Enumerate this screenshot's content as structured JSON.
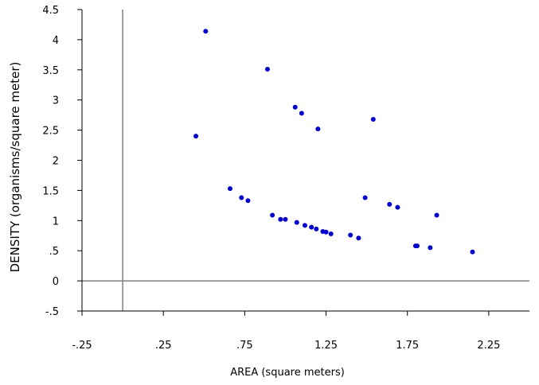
{
  "chart_data": {
    "type": "scatter",
    "title": "",
    "xlabel": "AREA (square meters)",
    "ylabel": "DENSITY (organisms/square meter)",
    "xlim": [
      -0.25,
      2.5
    ],
    "ylim": [
      -0.5,
      4.5
    ],
    "x_ticks": [
      -0.25,
      0.25,
      0.75,
      1.25,
      1.75,
      2.25
    ],
    "x_tick_labels": [
      "-.25",
      ".25",
      ".75",
      "1.25",
      "1.75",
      "2.25"
    ],
    "y_ticks": [
      -0.5,
      0,
      0.5,
      1,
      1.5,
      2,
      2.5,
      3,
      3.5,
      4,
      4.5
    ],
    "y_tick_labels": [
      "-.5",
      "0",
      ".5",
      "1",
      "1.5",
      "2",
      "2.5",
      "3",
      "3.5",
      "4",
      "4.5"
    ],
    "grid": false,
    "reference_lines": {
      "x": 0,
      "y": 0
    },
    "marker_color": "#0000CC",
    "axis_color": "#000000",
    "reference_line_color": "#808080",
    "series": [
      {
        "points": [
          {
            "x": 0.45,
            "y": 2.4
          },
          {
            "x": 0.51,
            "y": 4.14
          },
          {
            "x": 0.66,
            "y": 1.53
          },
          {
            "x": 0.73,
            "y": 1.38
          },
          {
            "x": 0.77,
            "y": 1.33
          },
          {
            "x": 0.89,
            "y": 3.51
          },
          {
            "x": 0.92,
            "y": 1.09
          },
          {
            "x": 0.97,
            "y": 1.02
          },
          {
            "x": 1.0,
            "y": 1.02
          },
          {
            "x": 1.06,
            "y": 2.88
          },
          {
            "x": 1.07,
            "y": 0.97
          },
          {
            "x": 1.1,
            "y": 2.78
          },
          {
            "x": 1.12,
            "y": 0.92
          },
          {
            "x": 1.16,
            "y": 0.89
          },
          {
            "x": 1.19,
            "y": 0.86
          },
          {
            "x": 1.2,
            "y": 2.52
          },
          {
            "x": 1.23,
            "y": 0.82
          },
          {
            "x": 1.25,
            "y": 0.81
          },
          {
            "x": 1.28,
            "y": 0.78
          },
          {
            "x": 1.4,
            "y": 0.76
          },
          {
            "x": 1.45,
            "y": 0.71
          },
          {
            "x": 1.49,
            "y": 1.38
          },
          {
            "x": 1.54,
            "y": 2.68
          },
          {
            "x": 1.64,
            "y": 1.27
          },
          {
            "x": 1.69,
            "y": 1.22
          },
          {
            "x": 1.8,
            "y": 0.58
          },
          {
            "x": 1.81,
            "y": 0.58
          },
          {
            "x": 1.89,
            "y": 0.55
          },
          {
            "x": 1.93,
            "y": 1.09
          },
          {
            "x": 2.15,
            "y": 0.48
          }
        ]
      }
    ]
  }
}
